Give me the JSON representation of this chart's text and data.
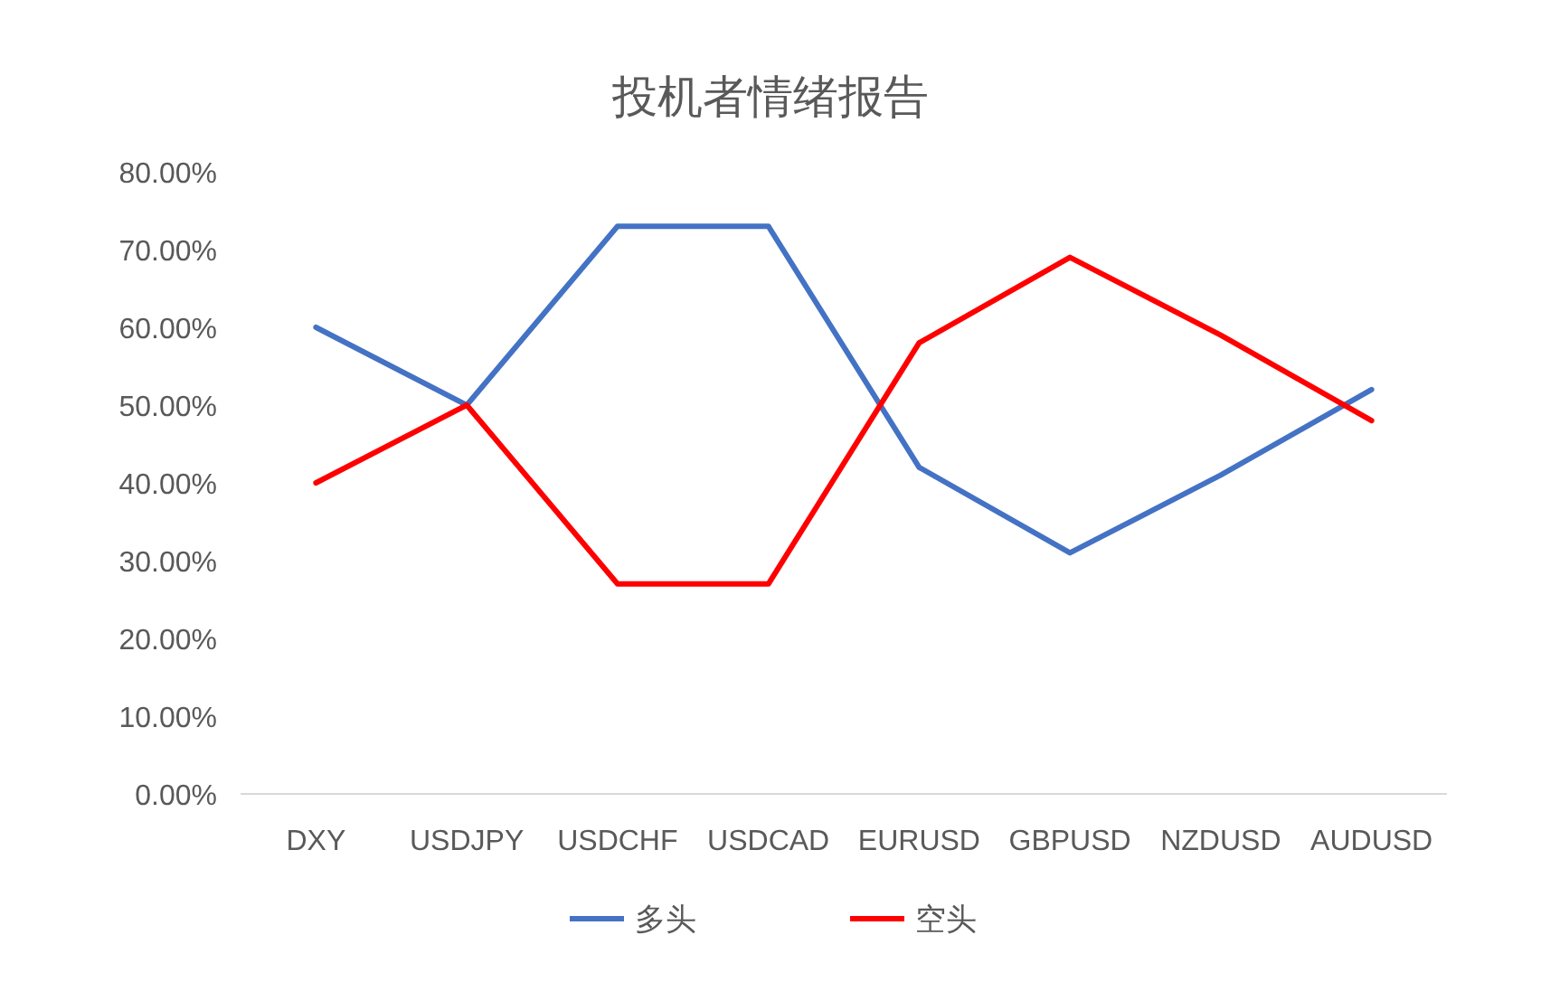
{
  "chart_data": {
    "type": "line",
    "title": "投机者情绪报告",
    "categories": [
      "DXY",
      "USDJPY",
      "USDCHF",
      "USDCAD",
      "EURUSD",
      "GBPUSD",
      "NZDUSD",
      "AUDUSD"
    ],
    "series": [
      {
        "name": "多头",
        "color": "#4472c4",
        "values": [
          60,
          50,
          73,
          73,
          42,
          31,
          41,
          52
        ]
      },
      {
        "name": "空头",
        "color": "#ff0000",
        "values": [
          40,
          50,
          27,
          27,
          58,
          69,
          59,
          48
        ]
      }
    ],
    "ylim": [
      0,
      80
    ],
    "yticks": [
      {
        "value": 0,
        "label": "0.00%"
      },
      {
        "value": 10,
        "label": "10.00%"
      },
      {
        "value": 20,
        "label": "20.00%"
      },
      {
        "value": 30,
        "label": "30.00%"
      },
      {
        "value": 40,
        "label": "40.00%"
      },
      {
        "value": 50,
        "label": "50.00%"
      },
      {
        "value": 60,
        "label": "60.00%"
      },
      {
        "value": 70,
        "label": "70.00%"
      },
      {
        "value": 80,
        "label": "80.00%"
      }
    ],
    "grid": false,
    "legend": "bottom",
    "marker": "none",
    "line_style": "solid"
  }
}
